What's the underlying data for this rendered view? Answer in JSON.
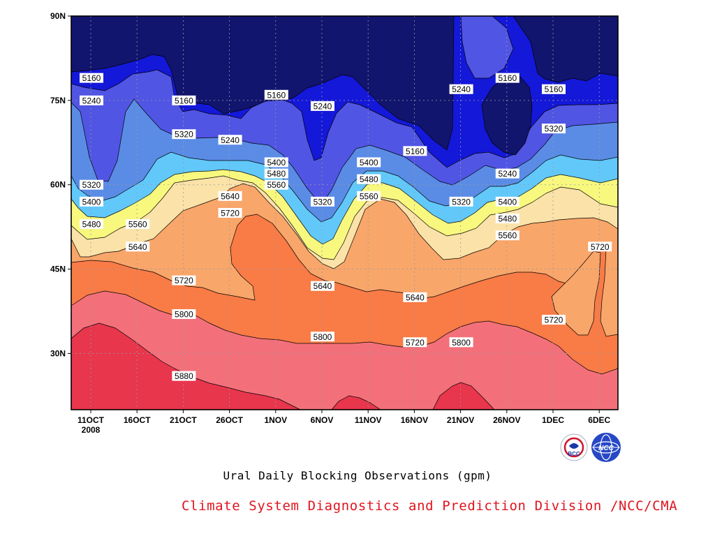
{
  "chart_data": {
    "type": "heatmap",
    "subtype": "filled contour (Hovmoller)",
    "title": "Ural Daily Blocking Observations (gpm)",
    "x_tick_labels": [
      "11OCT",
      "16OCT",
      "21OCT",
      "26OCT",
      "1NOV",
      "6NOV",
      "11NOV",
      "16NOV",
      "21NOV",
      "26NOV",
      "1DEC",
      "6DEC"
    ],
    "x_year_label": "2008",
    "y_tick_labels": [
      "30N",
      "45N",
      "60N",
      "75N",
      "90N"
    ],
    "y_ticks": [
      30,
      45,
      60,
      75,
      90
    ],
    "ylim": [
      20,
      90
    ],
    "contour_levels": [
      5160,
      5240,
      5320,
      5400,
      5480,
      5560,
      5640,
      5720,
      5800,
      5880
    ],
    "band_colors": [
      "#12156e",
      "#1418d8",
      "#5155e4",
      "#5a8ce6",
      "#62c8fa",
      "#f8f87e",
      "#fbe2a8",
      "#f9a66a",
      "#f97b46",
      "#f3707a",
      "#e8364d"
    ],
    "contour_labels": [
      {
        "value": "5160",
        "date": "11OCT",
        "lat": 79
      },
      {
        "value": "5240",
        "date": "11OCT",
        "lat": 75
      },
      {
        "value": "5160",
        "date": "21OCT",
        "lat": 75
      },
      {
        "value": "5320",
        "date": "21OCT",
        "lat": 69
      },
      {
        "value": "5240",
        "date": "26OCT",
        "lat": 68
      },
      {
        "value": "5160",
        "date": "1NOV",
        "lat": 76
      },
      {
        "value": "5240",
        "date": "6NOV",
        "lat": 74
      },
      {
        "value": "5400",
        "date": "1NOV",
        "lat": 64
      },
      {
        "value": "5480",
        "date": "1NOV",
        "lat": 62
      },
      {
        "value": "5560",
        "date": "1NOV",
        "lat": 60
      },
      {
        "value": "5640",
        "date": "26OCT",
        "lat": 58
      },
      {
        "value": "5720",
        "date": "26OCT",
        "lat": 55
      },
      {
        "value": "5320",
        "date": "11OCT",
        "lat": 60
      },
      {
        "value": "5400",
        "date": "11OCT",
        "lat": 57
      },
      {
        "value": "5480",
        "date": "11OCT",
        "lat": 53
      },
      {
        "value": "5560",
        "date": "16OCT",
        "lat": 53
      },
      {
        "value": "5640",
        "date": "16OCT",
        "lat": 49
      },
      {
        "value": "5720",
        "date": "21OCT",
        "lat": 43
      },
      {
        "value": "5800",
        "date": "21OCT",
        "lat": 37
      },
      {
        "value": "5880",
        "date": "21OCT",
        "lat": 26
      },
      {
        "value": "5320",
        "date": "6NOV",
        "lat": 57
      },
      {
        "value": "5640",
        "date": "6NOV",
        "lat": 42
      },
      {
        "value": "5800",
        "date": "6NOV",
        "lat": 33
      },
      {
        "value": "5400",
        "date": "11NOV",
        "lat": 64
      },
      {
        "value": "5480",
        "date": "11NOV",
        "lat": 61
      },
      {
        "value": "5560",
        "date": "11NOV",
        "lat": 58
      },
      {
        "value": "5720",
        "date": "16NOV",
        "lat": 32
      },
      {
        "value": "5640",
        "date": "16NOV",
        "lat": 40
      },
      {
        "value": "5160",
        "date": "16NOV",
        "lat": 66
      },
      {
        "value": "5320",
        "date": "21NOV",
        "lat": 57
      },
      {
        "value": "5240",
        "date": "21NOV",
        "lat": 77
      },
      {
        "value": "5800",
        "date": "21NOV",
        "lat": 32
      },
      {
        "value": "5160",
        "date": "26NOV",
        "lat": 79
      },
      {
        "value": "5240",
        "date": "26NOV",
        "lat": 62
      },
      {
        "value": "5400",
        "date": "26NOV",
        "lat": 57
      },
      {
        "value": "5480",
        "date": "26NOV",
        "lat": 54
      },
      {
        "value": "5560",
        "date": "26NOV",
        "lat": 51
      },
      {
        "value": "5160",
        "date": "1DEC",
        "lat": 77
      },
      {
        "value": "5320",
        "date": "1DEC",
        "lat": 70
      },
      {
        "value": "5720",
        "date": "1DEC",
        "lat": 36
      },
      {
        "value": "5720",
        "date": "6DEC",
        "lat": 49
      }
    ],
    "grid": true
  },
  "footer": "Climate System Diagnostics and Prediction Division /NCC/CMA",
  "logos": [
    {
      "name": "bcc-logo",
      "text": "BCC"
    },
    {
      "name": "ncc-logo",
      "text": "NCC"
    }
  ]
}
